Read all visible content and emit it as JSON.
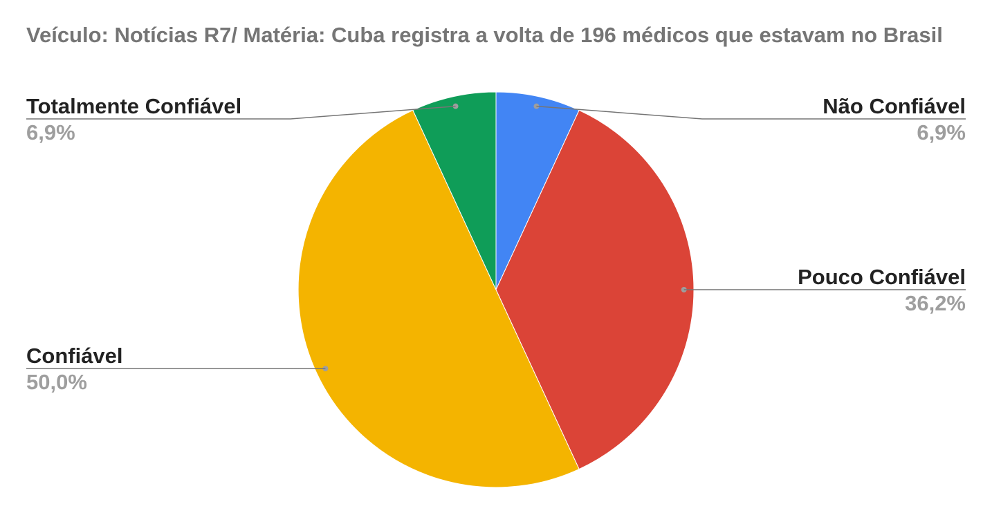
{
  "chart_data": {
    "type": "pie",
    "title": "Veículo: Notícias R7/ Matéria: Cuba registra a volta de 196 médicos que estavam no Brasil",
    "slices": [
      {
        "label": "Não Confiável",
        "value": 6.9,
        "display": "6,9%",
        "color": "#4285f4",
        "label_side": "right"
      },
      {
        "label": "Pouco Confiável",
        "value": 36.2,
        "display": "36,2%",
        "color": "#db4437",
        "label_side": "right"
      },
      {
        "label": "Confiável",
        "value": 50.0,
        "display": "50,0%",
        "color": "#f4b400",
        "label_side": "left"
      },
      {
        "label": "Totalmente Confiável",
        "value": 6.9,
        "display": "6,9%",
        "color": "#0f9d58",
        "label_side": "left"
      }
    ],
    "legend": "labels beside slices"
  }
}
